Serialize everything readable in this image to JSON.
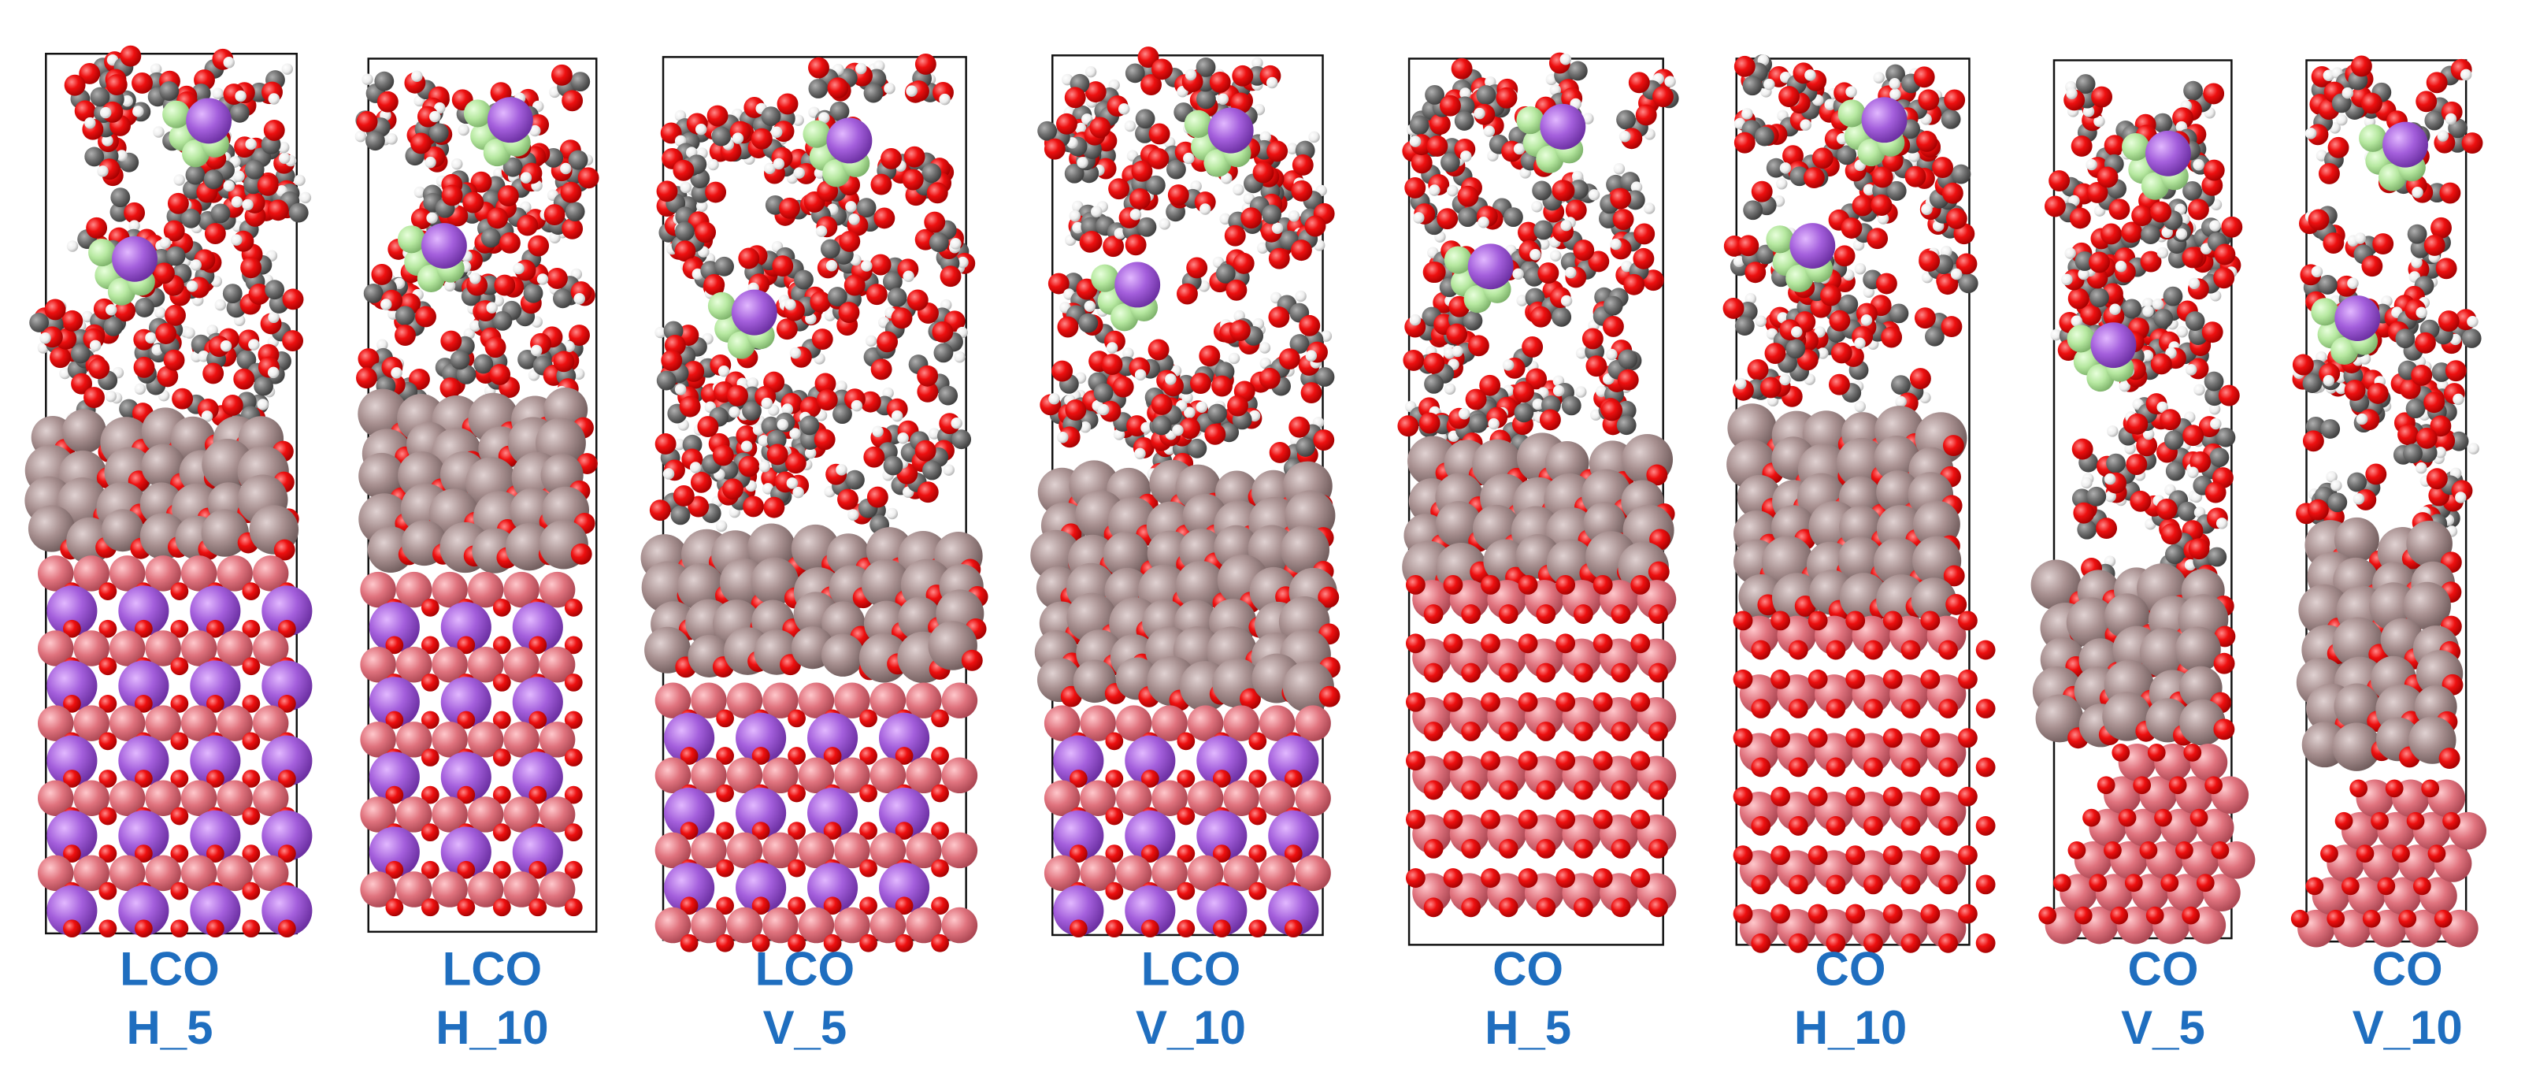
{
  "panels": [
    {
      "material": "LCO",
      "condition": "H_5"
    },
    {
      "material": "LCO",
      "condition": "H_10"
    },
    {
      "material": "LCO",
      "condition": "V_5"
    },
    {
      "material": "LCO",
      "condition": "V_10"
    },
    {
      "material": "CO",
      "condition": "H_5"
    },
    {
      "material": "CO",
      "condition": "H_10"
    },
    {
      "material": "CO",
      "condition": "V_5"
    },
    {
      "material": "CO",
      "condition": "V_10"
    }
  ]
}
